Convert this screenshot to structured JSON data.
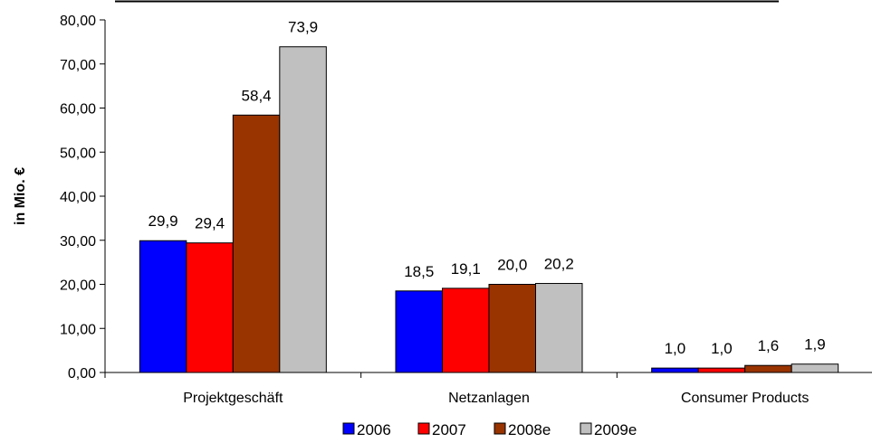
{
  "chart_data": {
    "type": "bar",
    "title": "",
    "xlabel": "",
    "ylabel": "in Mio. €",
    "ylim": [
      0,
      80
    ],
    "ytick_labels": [
      "0,00",
      "10,00",
      "20,00",
      "30,00",
      "40,00",
      "50,00",
      "60,00",
      "70,00",
      "80,00"
    ],
    "categories": [
      "Projektgeschäft",
      "Netzanlagen",
      "Consumer Products"
    ],
    "series": [
      {
        "name": "2006",
        "color": "#0000ff",
        "values": [
          29.9,
          18.5,
          1.0
        ],
        "labels": [
          "29,9",
          "18,5",
          "1,0"
        ]
      },
      {
        "name": "2007",
        "color": "#ff0000",
        "values": [
          29.4,
          19.1,
          1.0
        ],
        "labels": [
          "29,4",
          "19,1",
          "1,0"
        ]
      },
      {
        "name": "2008e",
        "color": "#993300",
        "values": [
          58.4,
          20.0,
          1.6
        ],
        "labels": [
          "58,4",
          "20,0",
          "1,6"
        ]
      },
      {
        "name": "2009e",
        "color": "#c0c0c0",
        "values": [
          73.9,
          20.2,
          1.9
        ],
        "labels": [
          "73,9",
          "20,2",
          "1,9"
        ]
      }
    ],
    "grid": false,
    "legend": "bottom"
  }
}
